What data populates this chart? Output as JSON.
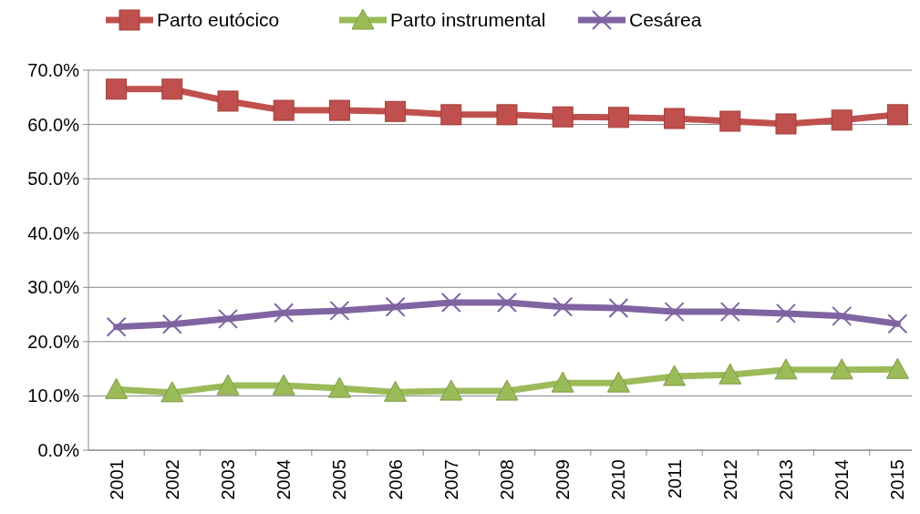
{
  "chart_data": {
    "type": "line",
    "categories": [
      "2001",
      "2002",
      "2003",
      "2004",
      "2005",
      "2006",
      "2007",
      "2008",
      "2009",
      "2010",
      "2011",
      "2012",
      "2013",
      "2014",
      "2015"
    ],
    "series": [
      {
        "name": "Parto eutócico",
        "color": "#c0504d",
        "marker": "square",
        "values": [
          66.5,
          66.5,
          64.3,
          62.6,
          62.6,
          62.4,
          61.8,
          61.8,
          61.4,
          61.3,
          61.1,
          60.6,
          60.1,
          60.8,
          61.8
        ]
      },
      {
        "name": "Parto instrumental",
        "color": "#9bbb59",
        "marker": "triangle",
        "values": [
          11.2,
          10.6,
          11.9,
          11.9,
          11.4,
          10.7,
          10.9,
          10.9,
          12.4,
          12.4,
          13.6,
          13.9,
          14.8,
          14.8,
          14.9
        ]
      },
      {
        "name": "Cesárea",
        "color": "#8064a2",
        "marker": "cross",
        "values": [
          22.7,
          23.2,
          24.2,
          25.3,
          25.7,
          26.4,
          27.2,
          27.2,
          26.4,
          26.2,
          25.5,
          25.5,
          25.2,
          24.7,
          23.3
        ]
      }
    ],
    "ylim": [
      0,
      70
    ],
    "yticks": [
      {
        "value": 0,
        "label": "0.0%"
      },
      {
        "value": 10,
        "label": "10.0%"
      },
      {
        "value": 20,
        "label": "20.0%"
      },
      {
        "value": 30,
        "label": "30.0%"
      },
      {
        "value": 40,
        "label": "40.0%"
      },
      {
        "value": 50,
        "label": "50.0%"
      },
      {
        "value": 60,
        "label": "60.0%"
      },
      {
        "value": 70,
        "label": "70.0%"
      }
    ],
    "grid": "y",
    "legend": "top"
  }
}
